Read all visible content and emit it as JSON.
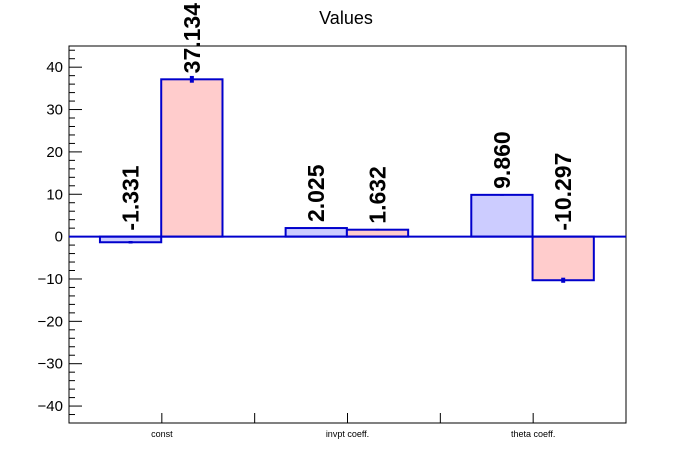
{
  "chart_data": {
    "type": "bar",
    "title": "Values",
    "xlabel": "",
    "ylabel": "",
    "categories": [
      "const",
      "invpt coeff.",
      "theta coeff."
    ],
    "series": [
      {
        "values": [
          -1.331,
          2.025,
          9.86
        ],
        "labels": [
          "-1.331",
          "2.025",
          "9.860"
        ],
        "errors": [
          0.3,
          0.2,
          0.2
        ]
      },
      {
        "values": [
          37.134,
          1.632,
          -10.297
        ],
        "labels": [
          "37.134",
          "1.632",
          "-10.297"
        ],
        "errors": [
          0.8,
          0.2,
          0.6
        ]
      }
    ],
    "ylim": [
      -44,
      45
    ],
    "yticks": [
      -40,
      -30,
      -20,
      -10,
      0,
      10,
      20,
      30,
      40
    ],
    "ytick_labels": [
      "−40",
      "−30",
      "−20",
      "−10",
      "0",
      "10",
      "20",
      "30",
      "40"
    ],
    "grid": false,
    "legend": "none",
    "colors": {
      "series0_fill": "#ccccff",
      "series1_fill": "#ffcccc",
      "bar_edge": "#0000cc",
      "axis": "#000000"
    }
  }
}
